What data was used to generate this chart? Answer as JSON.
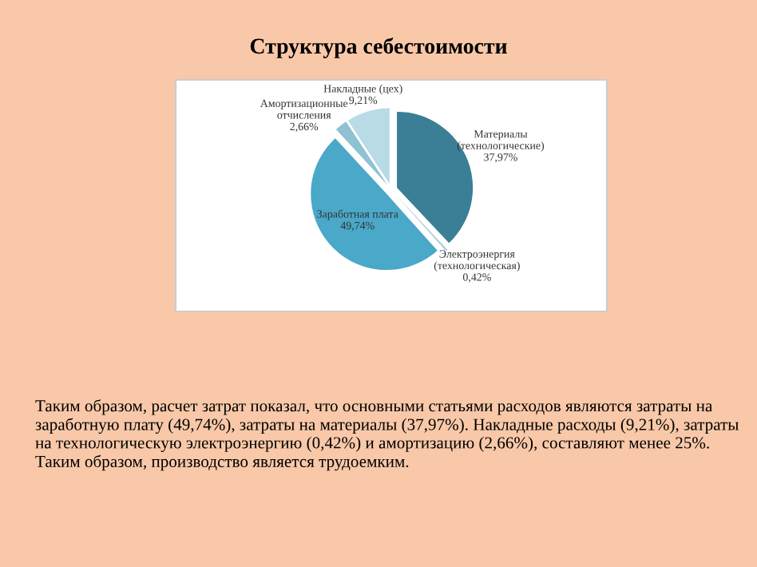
{
  "chart_data": {
    "type": "pie",
    "title": "Структура себестоимости",
    "categories": [
      "Материалы\n(технологические)",
      "Электроэнергия\n(технологическая)",
      "Заработная плата",
      "Амортизационные\nотчисления",
      "Накладные (цех)"
    ],
    "values": [
      37.97,
      0.42,
      49.74,
      2.66,
      9.21
    ],
    "value_labels": [
      "37,97%",
      "0,42%",
      "49,74%",
      "2,66%",
      "9,21%"
    ],
    "colors": [
      "#3a7f95",
      "#a8cdd8",
      "#4aa8c8",
      "#8fc2d3",
      "#b8dbe6"
    ],
    "annotations": [
      "Таким образом, расчет затрат показал, что основными статьями расходов являются затраты на заработную плату (49,74%), затраты на материалы (37,97%). Накладные расходы (9,21%), затраты на технологическую электроэнергию (0,42%) и амортизацию (2,66%), составляют менее 25%. Таким образом, производство является трудоемким."
    ]
  }
}
